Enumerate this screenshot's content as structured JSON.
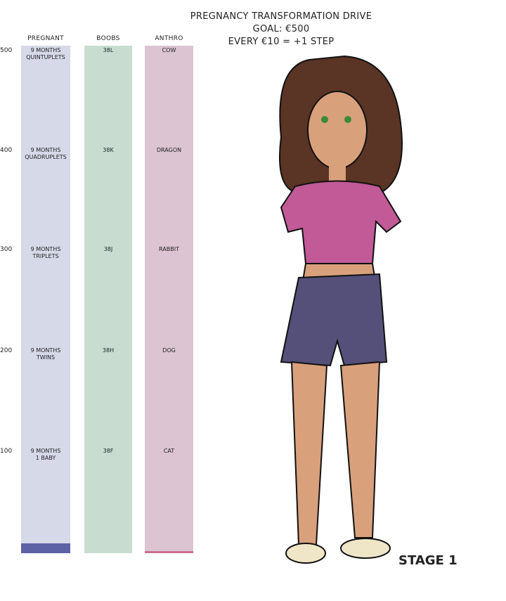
{
  "title": {
    "line1": "PREGNANCY TRANSFORMATION DRIVE",
    "line2": "GOAL: €500",
    "line3": "EVERY €10 = +1 STEP"
  },
  "stage": "STAGE 1",
  "scale": {
    "ticks": [
      "500",
      "400",
      "300",
      "200",
      "100"
    ]
  },
  "trackers": [
    {
      "header": "PREGNANT",
      "color": "#d6d9e8",
      "fill_color": "#5d61a6",
      "value": 10,
      "max": 500,
      "steps": [
        "9 MONTHS\nQUINTUPLETS",
        "9 MONTHS\nQUADRUPLETS",
        "9 MONTHS\nTRIPLETS",
        "9 MONTHS\nTWINS",
        "9 MONTHS\n1 BABY"
      ]
    },
    {
      "header": "BOOBS",
      "color": "#c8ddd0",
      "fill_color": "#7fb596",
      "value": 0,
      "max": 500,
      "steps": [
        "38L",
        "38K",
        "38J",
        "38H",
        "38F"
      ]
    },
    {
      "header": "ANTHRO",
      "color": "#dcc4d2",
      "fill_color": "#c9708f",
      "value": 2,
      "max": 500,
      "steps": [
        "COW",
        "DRAGON",
        "RABBIT",
        "DOG",
        "CAT"
      ]
    }
  ]
}
